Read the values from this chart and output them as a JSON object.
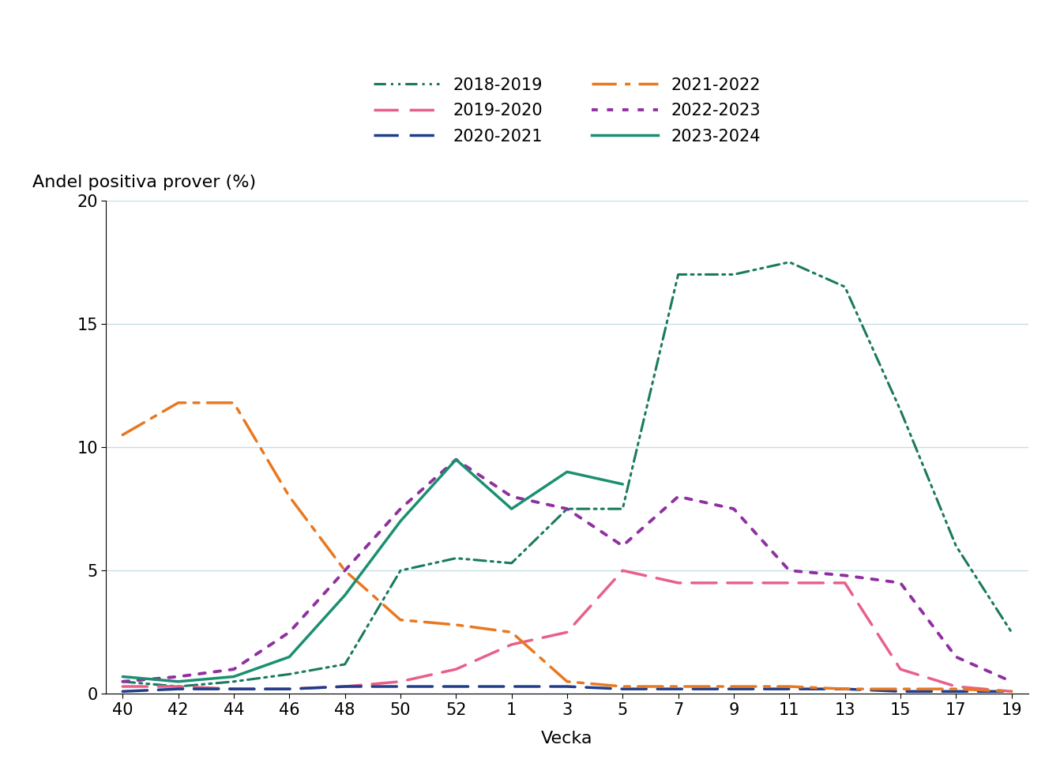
{
  "ylabel": "Andel positiva prover (%)",
  "xlabel": "Vecka",
  "ylim": [
    0,
    20
  ],
  "yticks": [
    0,
    5,
    10,
    15,
    20
  ],
  "x_labels": [
    "40",
    "42",
    "44",
    "46",
    "48",
    "50",
    "52",
    "1",
    "3",
    "5",
    "7",
    "9",
    "11",
    "13",
    "15",
    "17",
    "19"
  ],
  "series": {
    "2018-2019": {
      "color": "#1a7a5e",
      "values": [
        0.5,
        0.3,
        0.5,
        0.8,
        1.2,
        5.0,
        5.5,
        5.3,
        7.5,
        7.5,
        17.0,
        17.0,
        17.5,
        16.5,
        11.5,
        6.0,
        2.5
      ]
    },
    "2019-2020": {
      "color": "#e8608a",
      "values": [
        0.3,
        0.3,
        0.2,
        0.2,
        0.3,
        0.5,
        1.0,
        2.0,
        2.5,
        5.0,
        4.5,
        4.5,
        4.5,
        4.5,
        1.0,
        0.3,
        0.1
      ]
    },
    "2020-2021": {
      "color": "#1f3d8a",
      "values": [
        0.1,
        0.2,
        0.2,
        0.2,
        0.3,
        0.3,
        0.3,
        0.3,
        0.3,
        0.2,
        0.2,
        0.2,
        0.2,
        0.2,
        0.1,
        0.1,
        0.1
      ]
    },
    "2021-2022": {
      "color": "#e87820",
      "values": [
        10.5,
        11.8,
        11.8,
        8.0,
        5.0,
        3.0,
        2.8,
        2.5,
        0.5,
        0.3,
        0.3,
        0.3,
        0.3,
        0.2,
        0.2,
        0.2,
        0.1
      ]
    },
    "2022-2023": {
      "color": "#9030a0",
      "values": [
        0.5,
        0.7,
        1.0,
        2.5,
        5.0,
        7.5,
        9.5,
        8.0,
        7.5,
        6.0,
        8.0,
        7.5,
        5.0,
        4.8,
        4.5,
        1.5,
        0.5
      ]
    },
    "2023-2024": {
      "color": "#1a9070",
      "values": [
        0.7,
        0.5,
        0.7,
        1.5,
        4.0,
        7.0,
        9.5,
        7.5,
        9.0,
        8.5,
        null,
        null,
        null,
        null,
        null,
        null,
        null
      ]
    }
  },
  "line_styles": {
    "2018-2019": {
      "dash": [
        5,
        2,
        1,
        2,
        1,
        2
      ],
      "linewidth": 2.2
    },
    "2019-2020": {
      "dash": [
        9,
        4
      ],
      "linewidth": 2.5
    },
    "2020-2021": {
      "dash": [
        9,
        4
      ],
      "linewidth": 2.5
    },
    "2021-2022": {
      "dash": [
        9,
        3,
        2,
        3
      ],
      "linewidth": 2.5
    },
    "2022-2023": {
      "dash": [
        2,
        3
      ],
      "linewidth": 2.8
    },
    "2023-2024": {
      "dash": [],
      "linewidth": 2.5
    }
  },
  "legend_order": [
    "2018-2019",
    "2019-2020",
    "2020-2021",
    "2021-2022",
    "2022-2023",
    "2023-2024"
  ],
  "background_color": "#ffffff",
  "grid_color": "#c8dce8",
  "legend_fontsize": 15,
  "axis_tick_fontsize": 15,
  "label_fontsize": 16
}
